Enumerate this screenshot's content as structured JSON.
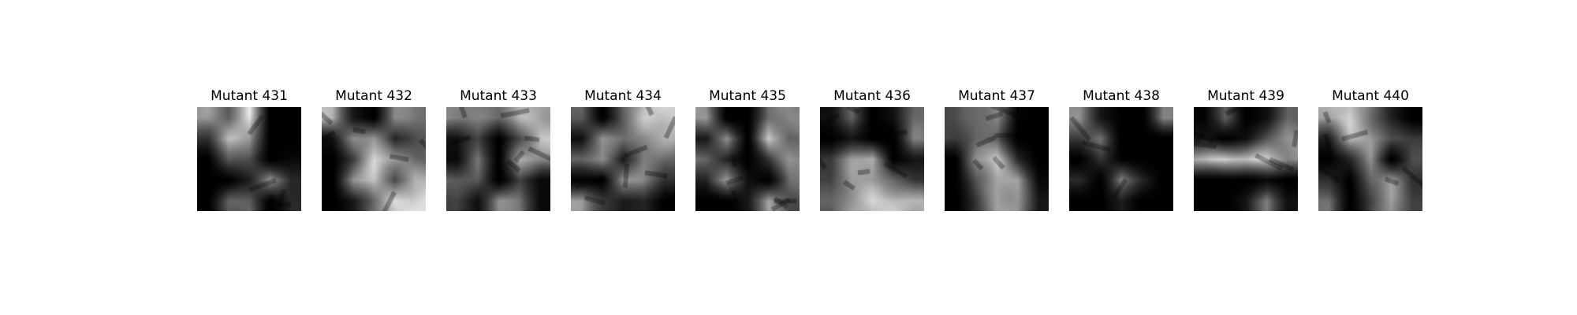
{
  "figure": {
    "panels": [
      {
        "title": "Mutant 431",
        "mask": [
          [
            0.75,
            0.55,
            1.0,
            0.0,
            0.0
          ],
          [
            0.35,
            0.85,
            0.8,
            0.0,
            0.0
          ],
          [
            0.0,
            0.55,
            0.45,
            0.0,
            0.1
          ],
          [
            0.0,
            0.0,
            0.25,
            0.75,
            0.3
          ],
          [
            0.0,
            0.55,
            0.55,
            0.0,
            0.3
          ]
        ]
      },
      {
        "title": "Mutant 432",
        "mask": [
          [
            0.85,
            0.2,
            0.0,
            0.75,
            0.6
          ],
          [
            0.15,
            0.7,
            0.8,
            0.25,
            0.5
          ],
          [
            0.0,
            0.4,
            0.95,
            0.8,
            0.55
          ],
          [
            0.0,
            0.75,
            0.9,
            0.45,
            0.85
          ],
          [
            0.0,
            0.2,
            0.6,
            0.95,
            1.0
          ]
        ]
      },
      {
        "title": "Mutant 433",
        "mask": [
          [
            0.7,
            0.65,
            0.6,
            0.85,
            0.8
          ],
          [
            0.15,
            0.45,
            0.0,
            0.45,
            0.9
          ],
          [
            0.1,
            0.65,
            0.0,
            0.85,
            0.7
          ],
          [
            0.55,
            0.5,
            0.0,
            0.4,
            0.1
          ],
          [
            0.4,
            0.15,
            0.7,
            0.65,
            0.1
          ]
        ]
      },
      {
        "title": "Mutant 434",
        "mask": [
          [
            0.55,
            0.0,
            0.55,
            0.9,
            0.95
          ],
          [
            0.15,
            0.75,
            0.6,
            0.7,
            0.85
          ],
          [
            0.55,
            0.75,
            0.2,
            0.7,
            0.55
          ],
          [
            0.05,
            0.0,
            0.8,
            0.65,
            0.35
          ],
          [
            0.75,
            0.4,
            0.2,
            0.3,
            0.0
          ]
        ]
      },
      {
        "title": "Mutant 435",
        "mask": [
          [
            0.75,
            0.0,
            0.0,
            0.6,
            0.7
          ],
          [
            0.2,
            0.75,
            0.0,
            0.95,
            0.55
          ],
          [
            0.6,
            0.25,
            0.0,
            0.35,
            0.75
          ],
          [
            0.25,
            0.8,
            0.15,
            0.0,
            0.6
          ],
          [
            0.0,
            0.0,
            0.2,
            0.8,
            0.45
          ]
        ]
      },
      {
        "title": "Mutant 436",
        "mask": [
          [
            0.15,
            0.55,
            0.0,
            0.15,
            0.6
          ],
          [
            0.0,
            0.2,
            0.0,
            0.0,
            0.65
          ],
          [
            0.4,
            0.75,
            0.9,
            0.0,
            0.2
          ],
          [
            0.4,
            0.8,
            0.75,
            0.6,
            0.35
          ],
          [
            0.55,
            0.75,
            0.95,
            0.9,
            0.85
          ]
        ]
      },
      {
        "title": "Mutant 437",
        "mask": [
          [
            0.45,
            0.6,
            0.7,
            0.05,
            0.0
          ],
          [
            0.4,
            0.55,
            0.55,
            0.0,
            0.0
          ],
          [
            0.0,
            0.75,
            0.95,
            0.3,
            0.0
          ],
          [
            0.0,
            0.5,
            0.8,
            0.8,
            0.1
          ],
          [
            0.0,
            0.35,
            0.8,
            0.75,
            0.2
          ]
        ]
      },
      {
        "title": "Mutant 438",
        "mask": [
          [
            0.7,
            0.2,
            0.0,
            0.0,
            0.65
          ],
          [
            0.4,
            0.6,
            0.0,
            0.0,
            0.0
          ],
          [
            0.0,
            0.35,
            0.05,
            0.0,
            0.0
          ],
          [
            0.3,
            0.0,
            0.65,
            0.3,
            0.0
          ],
          [
            0.0,
            0.0,
            0.25,
            0.0,
            0.0
          ]
        ]
      },
      {
        "title": "Mutant 439",
        "mask": [
          [
            0.05,
            0.55,
            0.0,
            0.15,
            0.55
          ],
          [
            0.2,
            0.0,
            0.15,
            0.5,
            0.75
          ],
          [
            0.85,
            0.95,
            0.9,
            0.95,
            0.7
          ],
          [
            0.0,
            0.0,
            0.0,
            0.1,
            0.0
          ],
          [
            0.0,
            0.0,
            0.2,
            0.65,
            0.15
          ]
        ]
      },
      {
        "title": "Mutant 440",
        "mask": [
          [
            0.8,
            0.95,
            0.6,
            0.25,
            0.0
          ],
          [
            0.25,
            0.85,
            0.8,
            0.45,
            0.4
          ],
          [
            0.0,
            0.3,
            0.7,
            0.0,
            0.45
          ],
          [
            0.35,
            0.0,
            0.6,
            0.75,
            0.35
          ],
          [
            0.6,
            0.0,
            0.4,
            0.8,
            0.4
          ]
        ]
      }
    ]
  }
}
